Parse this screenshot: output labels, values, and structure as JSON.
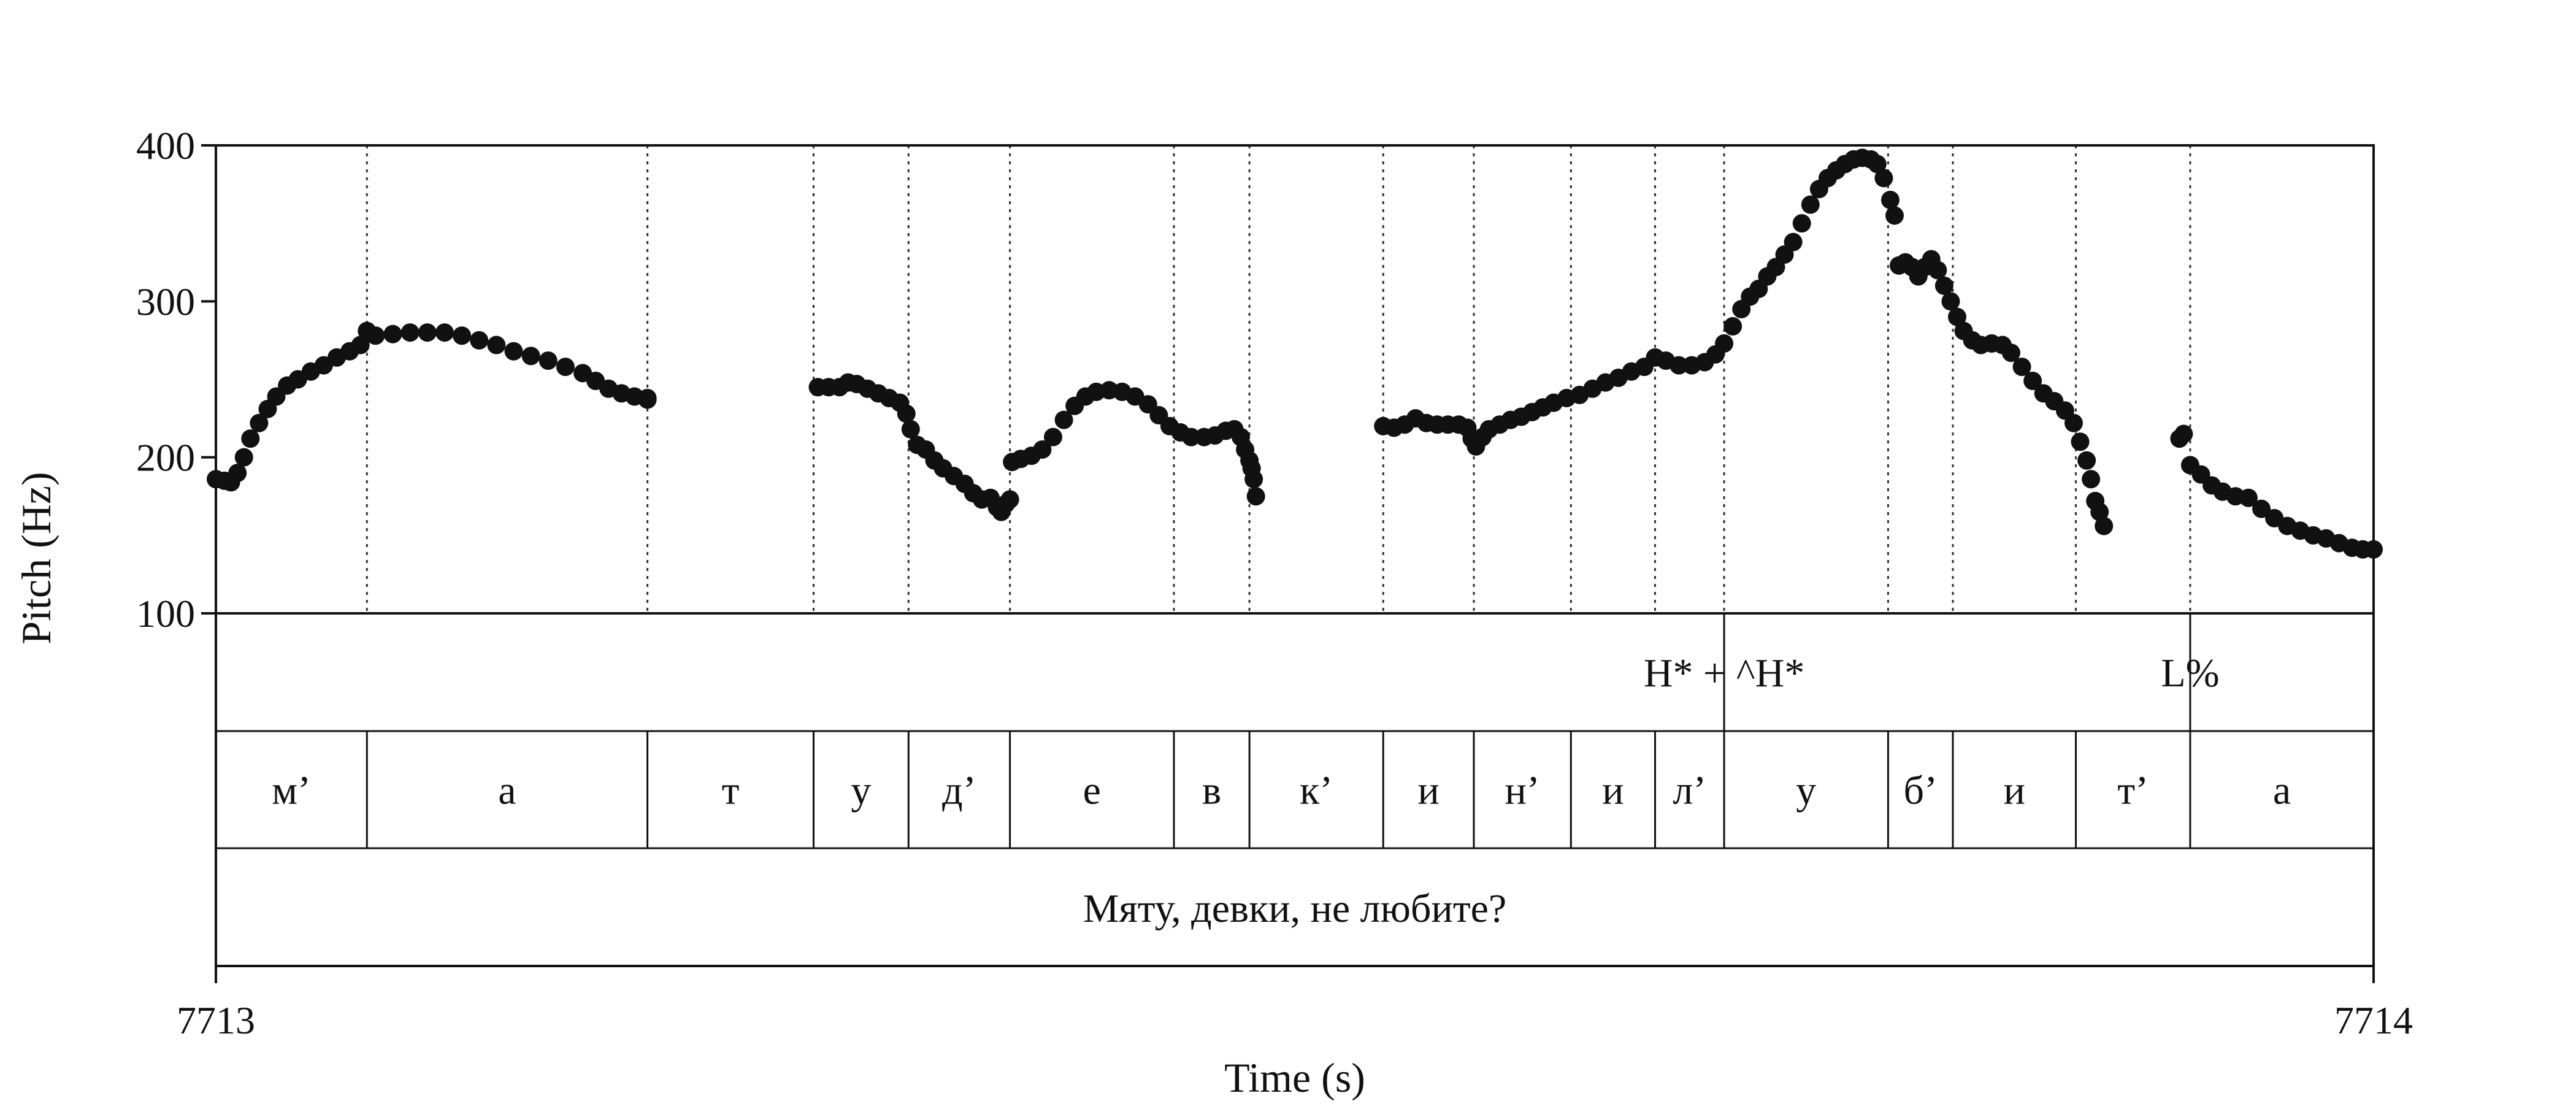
{
  "chart_data": {
    "type": "scatter",
    "title": "",
    "xlabel": "Time (s)",
    "ylabel": "Pitch (Hz)",
    "xlim": [
      7713,
      7714
    ],
    "ylim": [
      100,
      400
    ],
    "x_tick_labels": [
      "7713",
      "7714"
    ],
    "y_tick_labels": [
      "400",
      "300",
      "200",
      "100"
    ],
    "y_ticks": [
      400,
      300,
      200,
      100
    ],
    "grid": false,
    "segment_boundaries_s": [
      7713.0,
      7713.07,
      7713.2,
      7713.277,
      7713.321,
      7713.368,
      7713.444,
      7713.479,
      7713.541,
      7713.583,
      7713.628,
      7713.667,
      7713.699,
      7713.775,
      7713.805,
      7713.862,
      7713.915,
      7714.0
    ],
    "tiers": {
      "tones": [
        {
          "label": "H* + ^H*",
          "x": 7713.699
        },
        {
          "label": "L%",
          "x": 7713.915
        }
      ],
      "segments": [
        {
          "label": "м’",
          "start": 7713.0,
          "end": 7713.07
        },
        {
          "label": "а",
          "start": 7713.07,
          "end": 7713.2
        },
        {
          "label": "т",
          "start": 7713.2,
          "end": 7713.277
        },
        {
          "label": "у",
          "start": 7713.277,
          "end": 7713.321
        },
        {
          "label": "д’",
          "start": 7713.321,
          "end": 7713.368
        },
        {
          "label": "е",
          "start": 7713.368,
          "end": 7713.444
        },
        {
          "label": "в",
          "start": 7713.444,
          "end": 7713.479
        },
        {
          "label": "к’",
          "start": 7713.479,
          "end": 7713.541
        },
        {
          "label": "и",
          "start": 7713.541,
          "end": 7713.583
        },
        {
          "label": "н’",
          "start": 7713.583,
          "end": 7713.628
        },
        {
          "label": "и",
          "start": 7713.628,
          "end": 7713.667
        },
        {
          "label": "л’",
          "start": 7713.667,
          "end": 7713.699
        },
        {
          "label": "у",
          "start": 7713.699,
          "end": 7713.775
        },
        {
          "label": "б’",
          "start": 7713.775,
          "end": 7713.805
        },
        {
          "label": "и",
          "start": 7713.805,
          "end": 7713.862
        },
        {
          "label": "т’",
          "start": 7713.862,
          "end": 7713.915
        },
        {
          "label": "а",
          "start": 7713.915,
          "end": 7714.0
        }
      ],
      "sentence": "Мяту, девки, не любите?"
    },
    "series": [
      {
        "points": [
          [
            7713.0,
            186
          ],
          [
            7713.004,
            185
          ],
          [
            7713.007,
            184
          ],
          [
            7713.01,
            190
          ],
          [
            7713.013,
            200
          ],
          [
            7713.016,
            212
          ],
          [
            7713.02,
            222
          ],
          [
            7713.024,
            231
          ],
          [
            7713.028,
            239
          ],
          [
            7713.033,
            246
          ],
          [
            7713.038,
            250
          ],
          [
            7713.044,
            255
          ],
          [
            7713.05,
            259
          ],
          [
            7713.056,
            264
          ],
          [
            7713.062,
            268
          ],
          [
            7713.067,
            272
          ],
          [
            7713.07,
            281
          ],
          [
            7713.074,
            278
          ],
          [
            7713.082,
            279
          ],
          [
            7713.09,
            280
          ],
          [
            7713.098,
            280
          ],
          [
            7713.106,
            280
          ],
          [
            7713.114,
            278
          ],
          [
            7713.122,
            275
          ],
          [
            7713.13,
            272
          ],
          [
            7713.138,
            268
          ],
          [
            7713.146,
            265
          ],
          [
            7713.154,
            262
          ],
          [
            7713.162,
            258
          ],
          [
            7713.17,
            254
          ],
          [
            7713.176,
            249
          ],
          [
            7713.182,
            244
          ],
          [
            7713.188,
            241
          ],
          [
            7713.194,
            239
          ],
          [
            7713.2,
            238
          ],
          [
            7713.2,
            237
          ]
        ]
      },
      {
        "points": [
          [
            7713.279,
            245
          ],
          [
            7713.284,
            245
          ],
          [
            7713.289,
            245
          ],
          [
            7713.293,
            248
          ],
          [
            7713.297,
            247
          ],
          [
            7713.302,
            244
          ],
          [
            7713.307,
            241
          ],
          [
            7713.312,
            238
          ],
          [
            7713.317,
            235
          ],
          [
            7713.32,
            228
          ],
          [
            7713.322,
            218
          ],
          [
            7713.325,
            208
          ],
          [
            7713.329,
            205
          ],
          [
            7713.333,
            198
          ],
          [
            7713.337,
            193
          ],
          [
            7713.342,
            188
          ],
          [
            7713.347,
            183
          ],
          [
            7713.351,
            177
          ],
          [
            7713.355,
            173
          ],
          [
            7713.359,
            174
          ],
          [
            7713.362,
            168
          ],
          [
            7713.364,
            165
          ],
          [
            7713.366,
            170
          ],
          [
            7713.368,
            173
          ]
        ]
      },
      {
        "points": [
          [
            7713.369,
            197
          ],
          [
            7713.373,
            199
          ],
          [
            7713.378,
            201
          ],
          [
            7713.383,
            205
          ],
          [
            7713.388,
            213
          ],
          [
            7713.393,
            224
          ],
          [
            7713.398,
            233
          ],
          [
            7713.403,
            239
          ],
          [
            7713.408,
            242
          ],
          [
            7713.414,
            243
          ],
          [
            7713.42,
            242
          ],
          [
            7713.426,
            239
          ],
          [
            7713.432,
            234
          ],
          [
            7713.437,
            227
          ],
          [
            7713.442,
            220
          ],
          [
            7713.447,
            216
          ],
          [
            7713.452,
            213
          ],
          [
            7713.458,
            213
          ],
          [
            7713.463,
            214
          ],
          [
            7713.468,
            217
          ],
          [
            7713.472,
            218
          ],
          [
            7713.475,
            213
          ],
          [
            7713.477,
            205
          ],
          [
            7713.479,
            198
          ],
          [
            7713.48,
            193
          ],
          [
            7713.481,
            186
          ],
          [
            7713.482,
            175
          ]
        ]
      },
      {
        "points": [
          [
            7713.541,
            220
          ],
          [
            7713.546,
            219
          ],
          [
            7713.551,
            221
          ],
          [
            7713.556,
            225
          ],
          [
            7713.561,
            222
          ],
          [
            7713.566,
            221
          ],
          [
            7713.571,
            221
          ],
          [
            7713.576,
            221
          ],
          [
            7713.58,
            219
          ],
          [
            7713.582,
            212
          ],
          [
            7713.584,
            207
          ],
          [
            7713.587,
            213
          ],
          [
            7713.59,
            218
          ],
          [
            7713.595,
            221
          ],
          [
            7713.6,
            224
          ],
          [
            7713.605,
            226
          ],
          [
            7713.61,
            229
          ],
          [
            7713.615,
            232
          ],
          [
            7713.62,
            235
          ],
          [
            7713.626,
            238
          ],
          [
            7713.632,
            240
          ],
          [
            7713.638,
            244
          ],
          [
            7713.644,
            248
          ],
          [
            7713.65,
            251
          ],
          [
            7713.656,
            255
          ],
          [
            7713.662,
            258
          ],
          [
            7713.667,
            264
          ],
          [
            7713.672,
            262
          ],
          [
            7713.678,
            259
          ],
          [
            7713.684,
            259
          ],
          [
            7713.69,
            261
          ],
          [
            7713.695,
            266
          ],
          [
            7713.699,
            273
          ],
          [
            7713.703,
            284
          ],
          [
            7713.707,
            295
          ],
          [
            7713.711,
            303
          ],
          [
            7713.715,
            308
          ],
          [
            7713.719,
            316
          ],
          [
            7713.723,
            322
          ],
          [
            7713.727,
            330
          ],
          [
            7713.731,
            338
          ],
          [
            7713.735,
            350
          ],
          [
            7713.739,
            362
          ],
          [
            7713.743,
            372
          ],
          [
            7713.747,
            379
          ],
          [
            7713.751,
            384
          ],
          [
            7713.755,
            388
          ],
          [
            7713.759,
            391
          ],
          [
            7713.763,
            392
          ],
          [
            7713.767,
            391
          ],
          [
            7713.77,
            388
          ],
          [
            7713.773,
            379
          ],
          [
            7713.776,
            365
          ],
          [
            7713.778,
            355
          ]
        ]
      },
      {
        "points": [
          [
            7713.78,
            323
          ],
          [
            7713.783,
            325
          ],
          [
            7713.786,
            322
          ],
          [
            7713.789,
            316
          ],
          [
            7713.792,
            322
          ],
          [
            7713.795,
            327
          ],
          [
            7713.798,
            320
          ],
          [
            7713.801,
            310
          ],
          [
            7713.804,
            300
          ],
          [
            7713.807,
            290
          ],
          [
            7713.81,
            281
          ],
          [
            7713.814,
            275
          ],
          [
            7713.818,
            272
          ],
          [
            7713.823,
            273
          ],
          [
            7713.828,
            272
          ],
          [
            7713.832,
            267
          ],
          [
            7713.837,
            258
          ],
          [
            7713.842,
            249
          ],
          [
            7713.847,
            241
          ],
          [
            7713.852,
            236
          ],
          [
            7713.857,
            230
          ],
          [
            7713.861,
            222
          ],
          [
            7713.864,
            210
          ],
          [
            7713.867,
            198
          ],
          [
            7713.869,
            186
          ],
          [
            7713.871,
            172
          ],
          [
            7713.873,
            165
          ],
          [
            7713.875,
            156
          ]
        ]
      },
      {
        "points": [
          [
            7713.91,
            212
          ],
          [
            7713.912,
            215
          ],
          [
            7713.915,
            195
          ],
          [
            7713.92,
            189
          ],
          [
            7713.925,
            182
          ],
          [
            7713.93,
            178
          ],
          [
            7713.936,
            175
          ],
          [
            7713.942,
            174
          ],
          [
            7713.948,
            167
          ],
          [
            7713.954,
            161
          ],
          [
            7713.96,
            156
          ],
          [
            7713.966,
            153
          ],
          [
            7713.972,
            150
          ],
          [
            7713.978,
            148
          ],
          [
            7713.984,
            145
          ],
          [
            7713.99,
            142
          ],
          [
            7713.995,
            141
          ],
          [
            7714.0,
            141
          ]
        ]
      }
    ]
  }
}
